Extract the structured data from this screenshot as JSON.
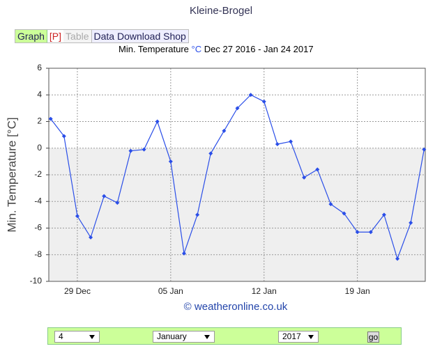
{
  "page_title": "Kleine-Brogel",
  "tabs": [
    "Graph",
    "[P]",
    "Table",
    "Data Download Shop"
  ],
  "chart_data": {
    "type": "line",
    "subtitle": [
      "Min. Temperature",
      "°C",
      "Dec 27 2016 - Jan 24 2017"
    ],
    "y_label": "Min. Temperature [°C]",
    "credit": "© weatheronline.co.uk",
    "categories": [
      null,
      null,
      "29 Dec",
      null,
      null,
      null,
      null,
      null,
      null,
      "05 Jan",
      null,
      null,
      null,
      null,
      null,
      null,
      "12 Jan",
      null,
      null,
      null,
      null,
      null,
      null,
      "19 Jan",
      null,
      null,
      null,
      null,
      null
    ],
    "series": [
      {
        "name": "Min. Temperature",
        "color": "#2a4ee8",
        "values": [
          2.2,
          0.9,
          -5.1,
          -6.7,
          -3.6,
          -4.1,
          -0.2,
          -0.1,
          2.0,
          -1.0,
          -7.9,
          -5.0,
          -0.4,
          1.3,
          3.0,
          4.0,
          3.5,
          0.3,
          0.5,
          -2.2,
          -1.6,
          -4.2,
          -4.9,
          -6.3,
          -6.3,
          -5.0,
          -8.3,
          -5.6,
          -0.1
        ]
      }
    ],
    "ylim": [
      -10,
      6
    ],
    "yticks": [
      6,
      4,
      2,
      0,
      -2,
      -4,
      -6,
      -8,
      -10
    ],
    "grid": true
  },
  "form": {
    "day": "4",
    "month": "January",
    "year": "2017",
    "button": "go"
  }
}
